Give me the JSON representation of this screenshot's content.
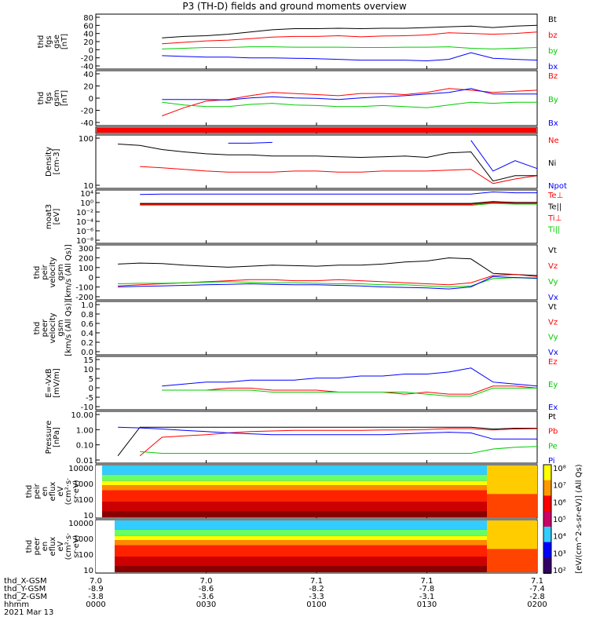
{
  "title": "P3 (TH-D) fields and ground moments overview",
  "chart_data": [
    {
      "type": "line",
      "ylabel": [
        "thd",
        "fgs",
        "gse",
        "[nT]"
      ],
      "ylim": [
        -50,
        90
      ],
      "yticks": [
        "80",
        "60",
        "40",
        "20",
        "0",
        "-20",
        "-40"
      ],
      "series": [
        {
          "name": "Bt",
          "color": "#000000",
          "values": [
            null,
            null,
            null,
            30,
            34,
            36,
            40,
            46,
            52,
            55,
            55,
            56,
            55,
            56,
            56,
            58,
            60,
            62,
            58,
            62,
            64
          ]
        },
        {
          "name": "bz",
          "color": "#ff0000",
          "values": [
            null,
            null,
            null,
            14,
            18,
            22,
            24,
            28,
            32,
            34,
            34,
            36,
            33,
            35,
            36,
            38,
            44,
            42,
            40,
            42,
            46
          ]
        },
        {
          "name": "by",
          "color": "#00cc00",
          "values": [
            null,
            null,
            null,
            0,
            2,
            4,
            4,
            6,
            6,
            5,
            5,
            5,
            4,
            4,
            5,
            5,
            6,
            2,
            0,
            2,
            4
          ]
        },
        {
          "name": "bx",
          "color": "#0000ff",
          "values": [
            null,
            null,
            null,
            -18,
            -20,
            -22,
            -22,
            -24,
            -24,
            -25,
            -26,
            -28,
            -30,
            -30,
            -30,
            -32,
            -28,
            -10,
            -25,
            -28,
            -30
          ]
        }
      ]
    },
    {
      "type": "line",
      "ylabel": [
        "thd",
        "fgs",
        "gsm",
        "[nT]"
      ],
      "ylim": [
        -50,
        45
      ],
      "yticks": [
        "40",
        "20",
        "0",
        "-20",
        "-40"
      ],
      "series": [
        {
          "name": "Bz",
          "color": "#ff0000",
          "values": [
            null,
            null,
            null,
            -35,
            -20,
            -8,
            -5,
            2,
            8,
            6,
            4,
            2,
            6,
            6,
            4,
            8,
            15,
            12,
            8,
            10,
            12
          ]
        },
        {
          "name": "By",
          "color": "#00cc00",
          "values": [
            null,
            null,
            null,
            -10,
            -15,
            -18,
            -18,
            -14,
            -12,
            -15,
            -16,
            -18,
            -18,
            -16,
            -18,
            -20,
            -15,
            -10,
            -12,
            -10,
            -10
          ]
        },
        {
          "name": "Bx",
          "color": "#0000ff",
          "values": [
            null,
            null,
            null,
            -5,
            -5,
            -5,
            -6,
            -2,
            0,
            -2,
            -3,
            -5,
            -2,
            0,
            2,
            5,
            8,
            15,
            5,
            5,
            5
          ]
        }
      ]
    },
    {
      "type": "line",
      "ylabel": [
        "Density",
        "[cm-3]"
      ],
      "log": true,
      "ylim": [
        3,
        250
      ],
      "yticks": [
        "100",
        "10"
      ],
      "series": [
        {
          "name": "Ne",
          "color": "#ff0000",
          "values": [
            null,
            null,
            18,
            16,
            14,
            12,
            11,
            11,
            11,
            12,
            12,
            11,
            11,
            12,
            12,
            12,
            13,
            14,
            4,
            6,
            8
          ]
        },
        {
          "name": "Ni",
          "color": "#000000",
          "values": [
            null,
            130,
            115,
            80,
            65,
            55,
            50,
            50,
            45,
            45,
            45,
            42,
            40,
            42,
            45,
            40,
            60,
            65,
            5,
            8,
            8
          ]
        },
        {
          "name": "Npot",
          "color": "#0000ff",
          "values": [
            null,
            null,
            null,
            null,
            null,
            null,
            140,
            140,
            150,
            null,
            null,
            null,
            null,
            null,
            null,
            150,
            null,
            180,
            12,
            30,
            15
          ]
        }
      ]
    },
    {
      "type": "line",
      "ylabel": [
        "moat3",
        "[eV]"
      ],
      "log": true,
      "ylim": [
        1e-08,
        10000
      ],
      "yticks": [
        "10⁴",
        "10⁰",
        "10⁻²",
        "10⁻⁴",
        "10⁻⁶",
        "10⁻⁸"
      ],
      "series": [
        {
          "name": "Te⊥",
          "color": "#ff0000",
          "values": [
            null,
            null,
            10,
            10,
            10,
            10,
            10,
            10,
            10,
            10,
            10,
            10,
            10,
            10,
            10,
            10,
            10,
            10,
            30,
            20,
            20
          ]
        },
        {
          "name": "Te||",
          "color": "#000000",
          "values": [
            null,
            null,
            15,
            15,
            15,
            15,
            15,
            15,
            15,
            15,
            15,
            15,
            15,
            15,
            15,
            15,
            15,
            15,
            40,
            25,
            25
          ]
        },
        {
          "name": "Ti⊥",
          "color": "#ff0000",
          "values": [
            null,
            null,
            8,
            8,
            8,
            8,
            8,
            8,
            8,
            8,
            8,
            8,
            8,
            8,
            8,
            8,
            8,
            8,
            20,
            15,
            15
          ]
        },
        {
          "name": "Ti||",
          "color": "#00cc00",
          "values": [
            null,
            null,
            5,
            5,
            5,
            5,
            5,
            5,
            5,
            5,
            5,
            5,
            5,
            5,
            5,
            5,
            5,
            5,
            15,
            10,
            10
          ]
        },
        {
          "name": "",
          "color": "#0000ff",
          "values": [
            null,
            null,
            2000,
            2500,
            2500,
            2500,
            2500,
            2500,
            2500,
            2500,
            2500,
            2500,
            2500,
            2500,
            2500,
            2500,
            2500,
            2500,
            8000,
            5000,
            5000
          ]
        }
      ]
    },
    {
      "type": "line",
      "ylabel": [
        "thd",
        "peir",
        "velocity",
        "gsm",
        "[km/s (All Qs)]"
      ],
      "ylim": [
        -200,
        300
      ],
      "yticks": [
        "300",
        "200",
        "100",
        "0",
        "-100",
        "-200"
      ],
      "series": [
        {
          "name": "Vt",
          "color": "#000000",
          "values": [
            null,
            130,
            140,
            135,
            120,
            110,
            100,
            110,
            120,
            115,
            110,
            120,
            120,
            130,
            150,
            160,
            190,
            180,
            40,
            30,
            20
          ]
        },
        {
          "name": "Vz",
          "color": "#ff0000",
          "values": [
            null,
            -80,
            -70,
            -60,
            -50,
            -40,
            -30,
            -20,
            -20,
            -30,
            -30,
            -20,
            -30,
            -40,
            -50,
            -60,
            -70,
            -50,
            20,
            30,
            10
          ]
        },
        {
          "name": "Vy",
          "color": "#00cc00",
          "values": [
            null,
            -60,
            -55,
            -55,
            -50,
            -45,
            -40,
            -45,
            -50,
            -50,
            -55,
            -60,
            -60,
            -70,
            -70,
            -80,
            -90,
            -80,
            -10,
            0,
            -10
          ]
        },
        {
          "name": "Vx",
          "color": "#0000ff",
          "values": [
            null,
            -90,
            -85,
            -80,
            -75,
            -70,
            -65,
            -60,
            -65,
            -70,
            -70,
            -75,
            -80,
            -90,
            -95,
            -100,
            -110,
            -90,
            10,
            0,
            -5
          ]
        }
      ]
    },
    {
      "type": "line",
      "ylabel": [
        "thd",
        "peer",
        "velocity",
        "gsm",
        "[km/s (All Qs)]"
      ],
      "ylim": [
        0,
        1
      ],
      "yticks": [
        "1.0",
        "0.8",
        "0.6",
        "0.4",
        "0.2",
        "0.0"
      ],
      "series": [
        {
          "name": "Vt",
          "color": "#000000",
          "values": []
        },
        {
          "name": "Vz",
          "color": "#ff0000",
          "values": []
        },
        {
          "name": "Vy",
          "color": "#00cc00",
          "values": []
        },
        {
          "name": "Vx",
          "color": "#0000ff",
          "values": []
        }
      ]
    },
    {
      "type": "line",
      "ylabel": [
        "E=-VxB",
        "[mV/m]"
      ],
      "ylim": [
        -10,
        15
      ],
      "yticks": [
        "15",
        "10",
        "5",
        "0",
        "-5",
        "-10"
      ],
      "series": [
        {
          "name": "Ez",
          "color": "#ff0000",
          "values": [
            null,
            null,
            null,
            -1,
            -1,
            -1,
            0,
            0,
            -1,
            -1,
            -1,
            -2,
            -2,
            -2,
            -3,
            -2,
            -3,
            -3,
            1,
            1,
            0
          ]
        },
        {
          "name": "Ey",
          "color": "#00cc00",
          "values": [
            null,
            null,
            null,
            -1,
            -1,
            -1,
            -1,
            -1,
            -2,
            -2,
            -2,
            -2,
            -2,
            -2,
            -2,
            -3,
            -4,
            -4,
            0,
            0,
            0
          ]
        },
        {
          "name": "Ex",
          "color": "#0000ff",
          "values": [
            null,
            null,
            null,
            1,
            2,
            3,
            3,
            4,
            4,
            4,
            5,
            5,
            6,
            6,
            7,
            7,
            8,
            10,
            3,
            2,
            1
          ]
        }
      ]
    },
    {
      "type": "line",
      "ylabel": [
        "Pressure",
        "[nPa]"
      ],
      "log": true,
      "ylim": [
        0.008,
        20
      ],
      "yticks": [
        "10.00",
        "1.00",
        "0.10",
        "0.01"
      ],
      "series": [
        {
          "name": "Pt",
          "color": "#000000",
          "values": [
            null,
            0.02,
            2.0,
            2.0,
            2.0,
            2.0,
            2.0,
            2.0,
            2.0,
            2.0,
            2.0,
            2.0,
            2.0,
            2.0,
            2.0,
            2.0,
            2.0,
            2.0,
            1.5,
            1.7,
            1.7
          ]
        },
        {
          "name": "Pb",
          "color": "#ff0000",
          "values": [
            null,
            null,
            0.02,
            0.4,
            0.5,
            0.6,
            0.8,
            1.0,
            1.1,
            1.2,
            1.2,
            1.2,
            1.2,
            1.3,
            1.3,
            1.4,
            1.6,
            1.6,
            1.3,
            1.5,
            1.6
          ]
        },
        {
          "name": "Pe",
          "color": "#00cc00",
          "values": [
            null,
            null,
            0.04,
            0.03,
            0.03,
            0.03,
            0.03,
            0.03,
            0.03,
            0.03,
            0.03,
            0.03,
            0.03,
            0.03,
            0.03,
            0.03,
            0.03,
            0.03,
            0.06,
            0.08,
            0.09
          ]
        },
        {
          "name": "Pi",
          "color": "#0000ff",
          "values": [
            null,
            2.0,
            1.8,
            1.5,
            1.2,
            1.0,
            0.8,
            0.7,
            0.6,
            0.6,
            0.6,
            0.6,
            0.6,
            0.6,
            0.7,
            0.8,
            0.9,
            0.8,
            0.3,
            0.3,
            0.3
          ]
        }
      ]
    },
    {
      "type": "heatmap",
      "ylabel": [
        "thd",
        "peir",
        "en",
        "eflux",
        "eV",
        "(cm²·s·",
        "sr·eV)"
      ],
      "log": true,
      "ylim": [
        6,
        25000
      ],
      "yticks": [
        "10000",
        "1000",
        "100",
        "10"
      ]
    },
    {
      "type": "heatmap",
      "ylabel": [
        "thd",
        "peer",
        "en",
        "eflux",
        "eV",
        "(cm²·s·",
        "sr·eV)"
      ],
      "log": true,
      "ylim": [
        6,
        25000
      ],
      "yticks": [
        "10000",
        "1000",
        "100",
        "10"
      ]
    }
  ],
  "colorbar": {
    "label": "[eV/(cm^2-s-sr-eV)] (All Qs)",
    "ticks": [
      "10⁸",
      "10⁷",
      "10⁶",
      "10⁵",
      "10⁴",
      "10³",
      "10²"
    ]
  },
  "x_axis": {
    "row_labels": [
      "thd_X-GSM",
      "thd_Y-GSM",
      "thd_Z-GSM",
      "hhmm",
      "2021 Mar 13"
    ],
    "ticks": [
      {
        "x": "7.0",
        "y": "-8.9",
        "z": "-3.8",
        "t": "0000"
      },
      {
        "x": "7.0",
        "y": "-8.6",
        "z": "-3.6",
        "t": "0030"
      },
      {
        "x": "7.1",
        "y": "-8.2",
        "z": "-3.3",
        "t": "0100"
      },
      {
        "x": "7.1",
        "y": "-7.8",
        "z": "-3.1",
        "t": "0130"
      },
      {
        "x": "7.1",
        "y": "-7.4",
        "z": "-2.8",
        "t": "0200"
      }
    ]
  }
}
